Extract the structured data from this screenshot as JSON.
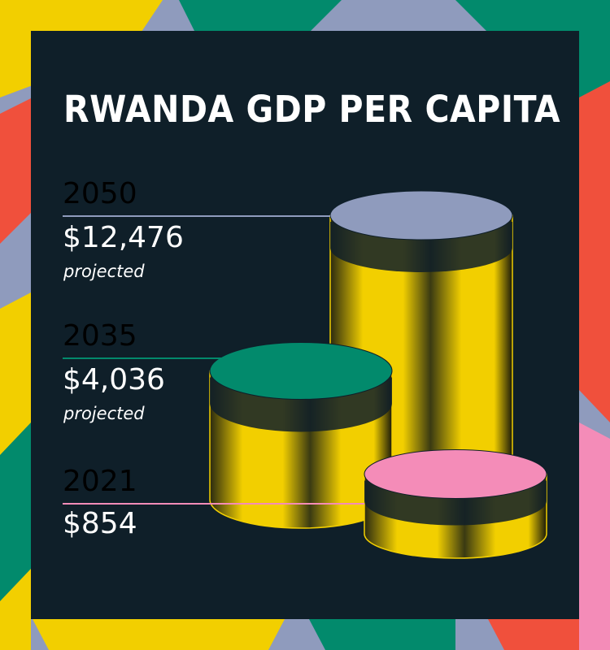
{
  "title": "RWANDA GDP PER CAPITA",
  "colors": {
    "panel": "#0f1f29",
    "cylinder_body": "#f2cf00",
    "y2050": "#8f9bbd",
    "y2035": "#028a6c",
    "y2021": "#f48cb8"
  },
  "chart_data": {
    "type": "bar",
    "style": "3d-cylinders",
    "title": "RWANDA GDP PER CAPITA",
    "categories": [
      "2050",
      "2035",
      "2021"
    ],
    "values": [
      12476,
      4036,
      854
    ],
    "labels": [
      {
        "year": "2050",
        "value": "$12,476",
        "note": "projected",
        "color": "#8f9bbd"
      },
      {
        "year": "2035",
        "value": "$4,036",
        "note": "projected",
        "color": "#028a6c"
      },
      {
        "year": "2021",
        "value": "$854",
        "note": "",
        "color": "#f48cb8"
      }
    ]
  }
}
